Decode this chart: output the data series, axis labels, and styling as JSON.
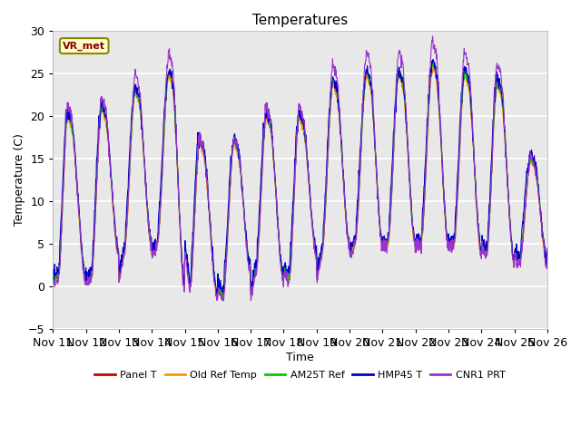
{
  "title": "Temperatures",
  "xlabel": "Time",
  "ylabel": "Temperature (C)",
  "ylim": [
    -5,
    30
  ],
  "plot_bg_color": "#e8e8e8",
  "series_colors": {
    "Panel T": "#cc0000",
    "Old Ref Temp": "#ff9900",
    "AM25T Ref": "#00cc00",
    "HMP45 T": "#0000cc",
    "CNR1 PRT": "#9933cc"
  },
  "xtick_labels": [
    "Nov 11",
    "Nov 12",
    "Nov 13",
    "Nov 14",
    "Nov 15",
    "Nov 16",
    "Nov 17",
    "Nov 18",
    "Nov 19",
    "Nov 20",
    "Nov 21",
    "Nov 22",
    "Nov 23",
    "Nov 24",
    "Nov 25",
    "Nov 26"
  ],
  "yticks": [
    -5,
    0,
    5,
    10,
    15,
    20,
    25,
    30
  ],
  "legend_label": "VR_met",
  "day_peaks": [
    20,
    21,
    23,
    25,
    17,
    17,
    20,
    20,
    24,
    25,
    25,
    26,
    25,
    24,
    15
  ],
  "day_mins": [
    1,
    1,
    4,
    5,
    0,
    -1,
    2,
    1,
    4,
    5,
    5,
    5,
    5,
    4,
    3
  ],
  "peak_pos": [
    0.45,
    0.48,
    0.5,
    0.52,
    0.45,
    0.5,
    0.48,
    0.48,
    0.5,
    0.52,
    0.5,
    0.52,
    0.5,
    0.48,
    0.5
  ]
}
